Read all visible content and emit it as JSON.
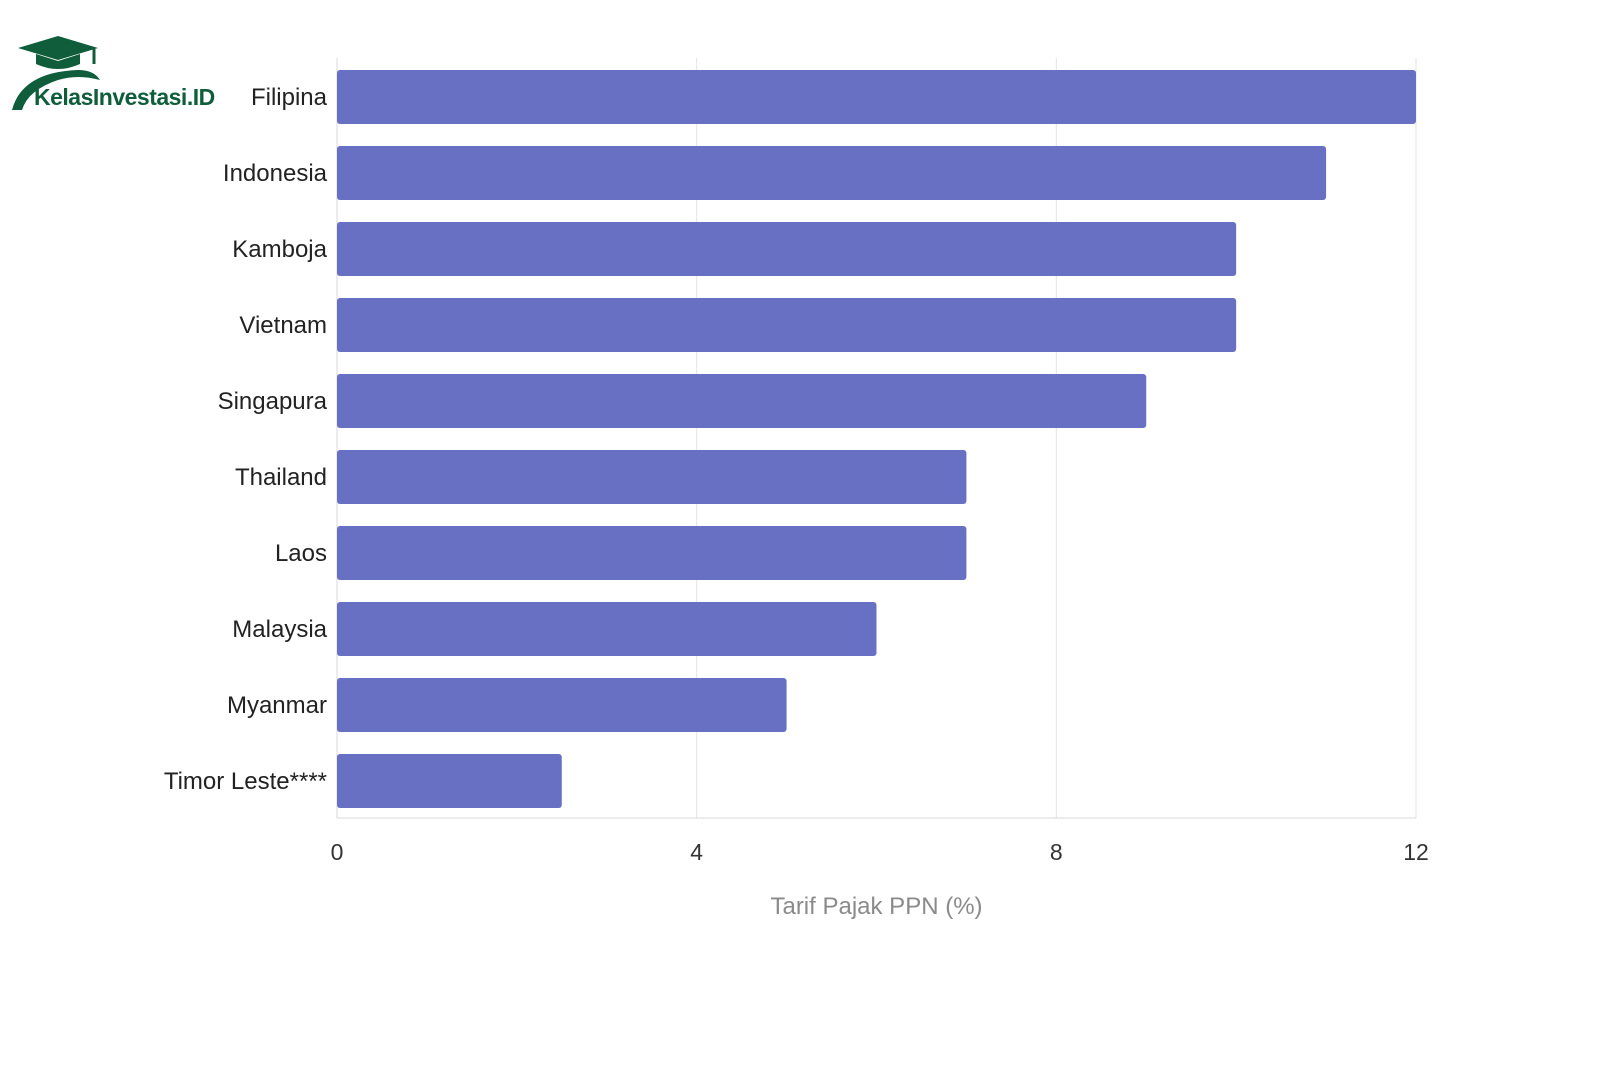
{
  "logo": {
    "text": "KelasInvestasi.ID",
    "color": "#0f5d3a"
  },
  "chart_data": {
    "type": "bar",
    "orientation": "horizontal",
    "categories": [
      "Filipina",
      "Indonesia",
      "Kamboja",
      "Vietnam",
      "Singapura",
      "Thailand",
      "Laos",
      "Malaysia",
      "Myanmar",
      "Timor Leste****"
    ],
    "values": [
      12,
      11,
      10,
      10,
      9,
      7,
      7,
      6,
      5,
      2.5
    ],
    "title": "",
    "xlabel": "Tarif Pajak PPN (%)",
    "ylabel": "",
    "xlim": [
      0,
      12
    ],
    "xticks": [
      0,
      4,
      8,
      12
    ],
    "grid": true,
    "bar_color": "#6870c4"
  }
}
